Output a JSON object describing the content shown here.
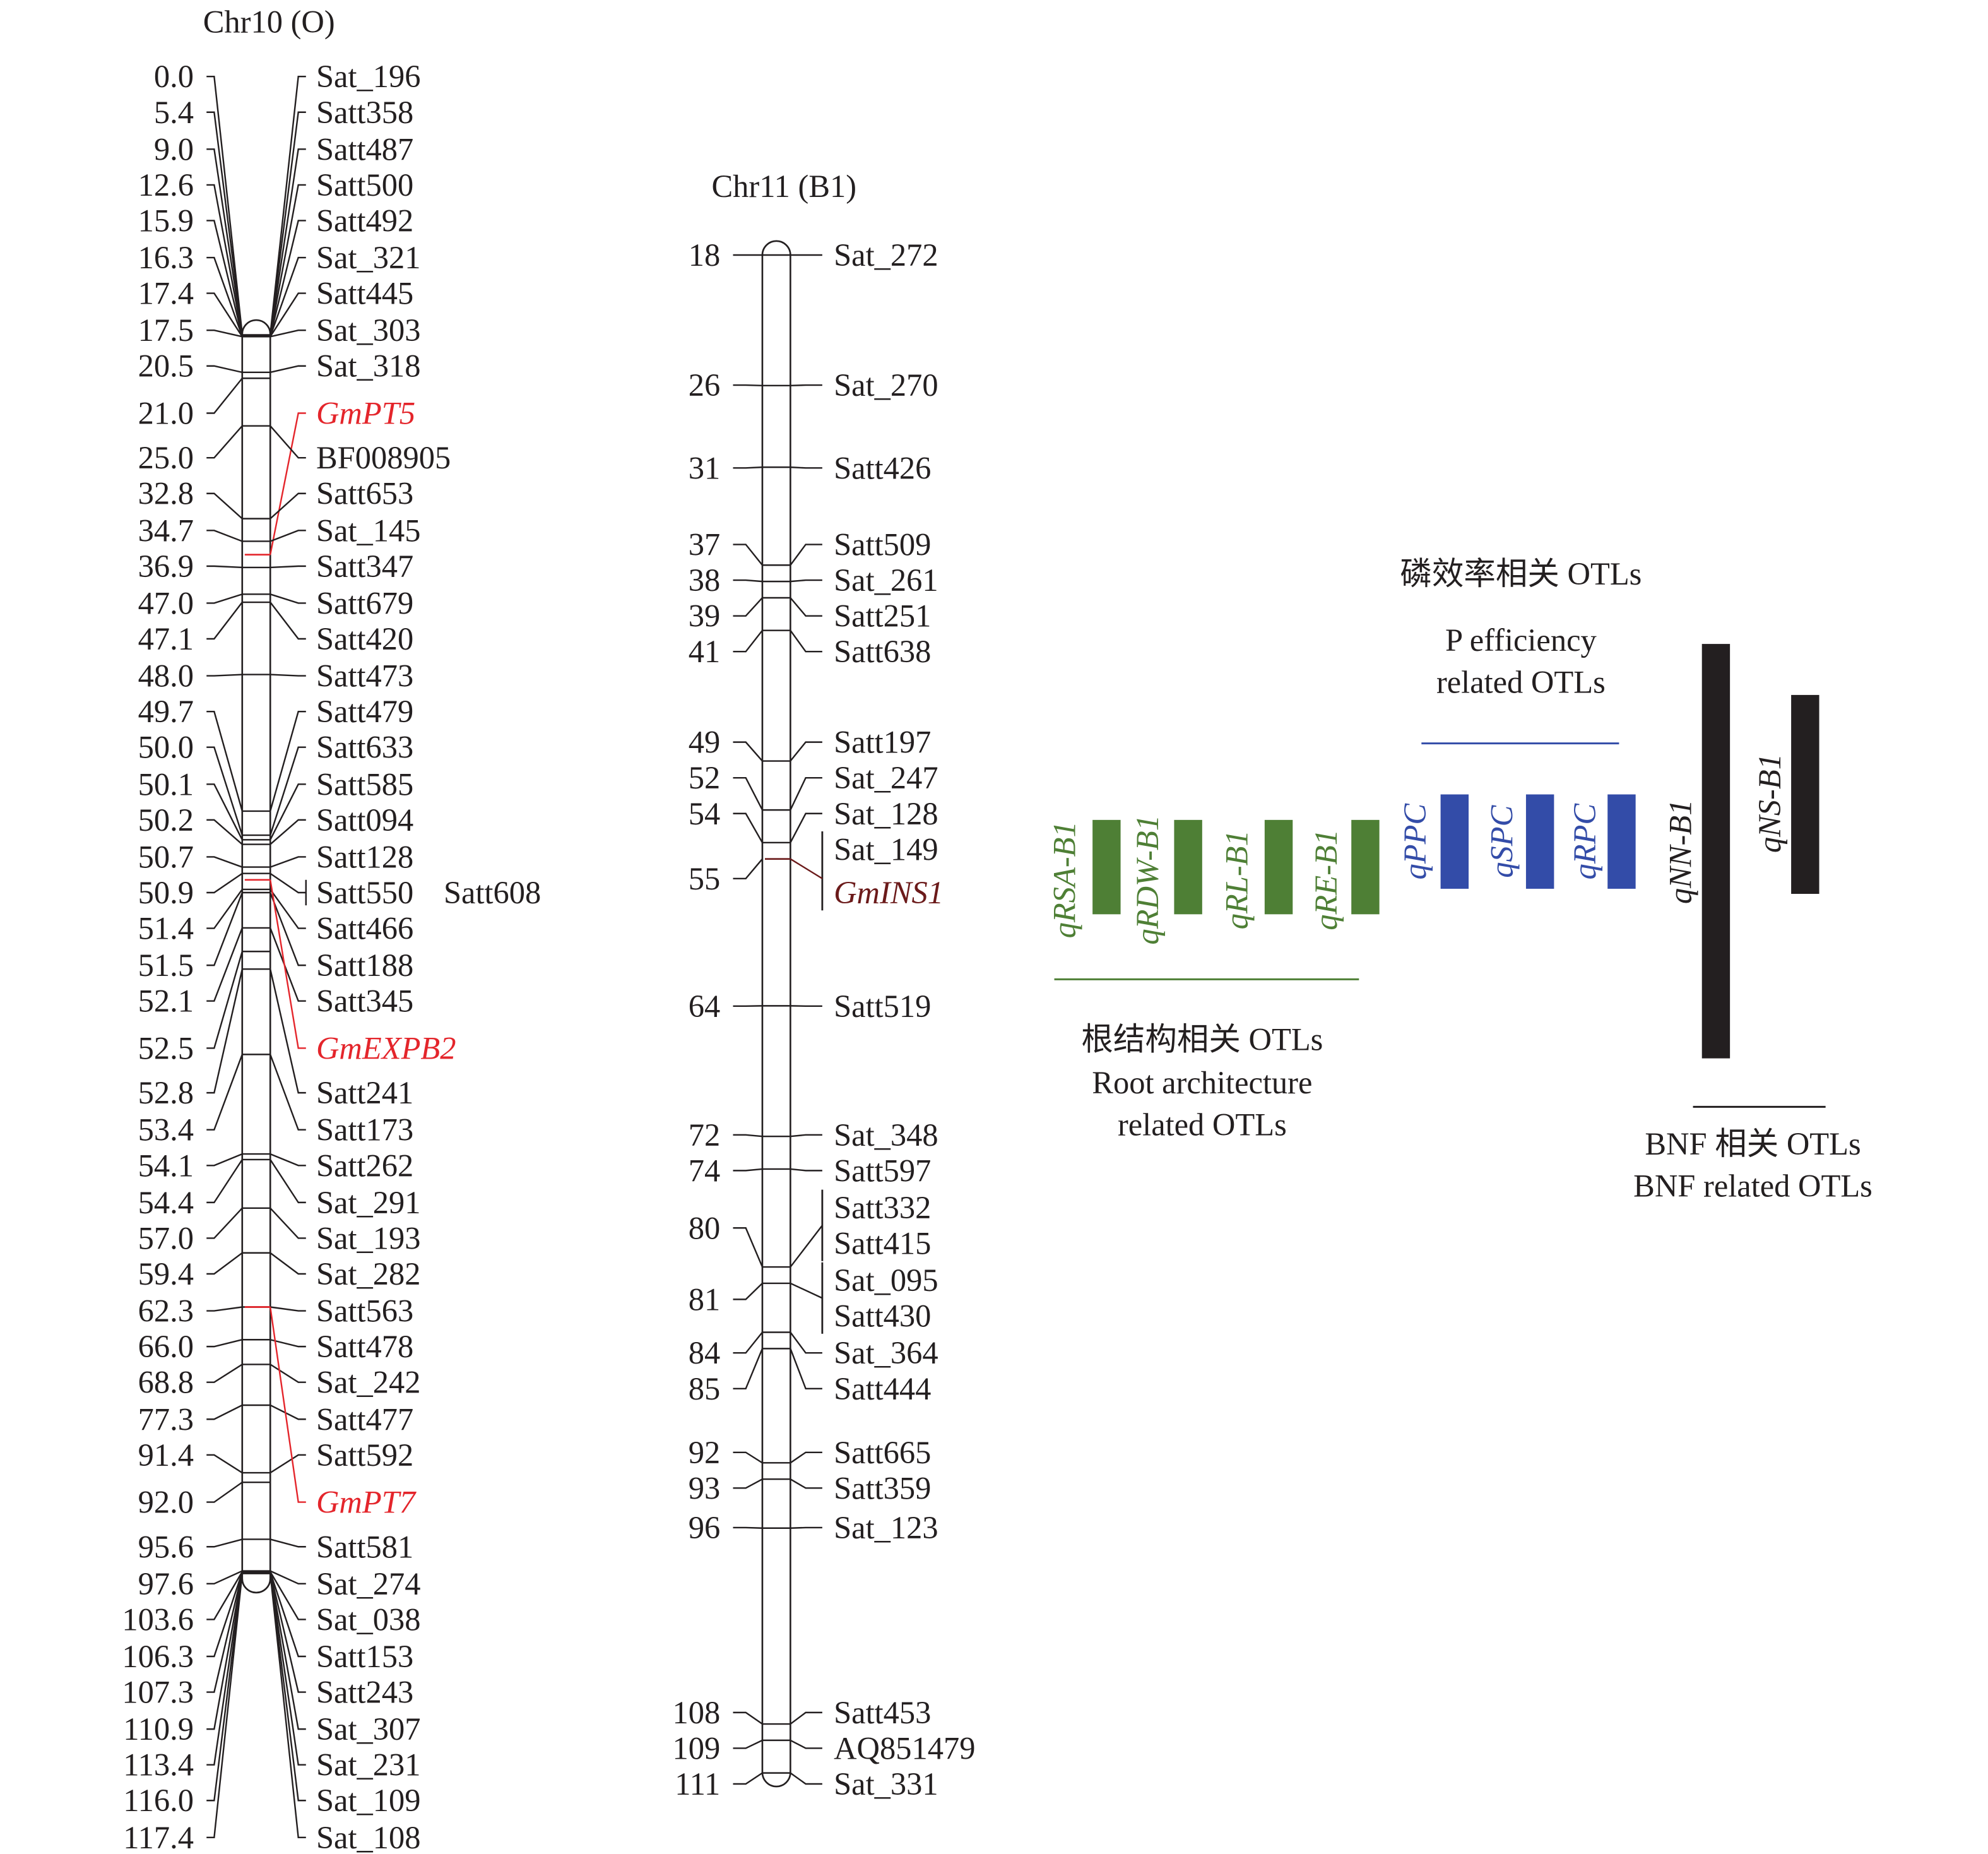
{
  "chr10": {
    "title": "Chr10 (O)",
    "markers": [
      {
        "pos": "0.0",
        "name": "Sat_196"
      },
      {
        "pos": "5.4",
        "name": "Satt358"
      },
      {
        "pos": "9.0",
        "name": "Satt487"
      },
      {
        "pos": "12.6",
        "name": "Satt500"
      },
      {
        "pos": "15.9",
        "name": "Satt492"
      },
      {
        "pos": "16.3",
        "name": "Sat_321"
      },
      {
        "pos": "17.4",
        "name": "Satt445"
      },
      {
        "pos": "17.5",
        "name": "Sat_303"
      },
      {
        "pos": "20.5",
        "name": "Sat_318"
      },
      {
        "pos": "21.0",
        "name": "GmPT5",
        "gene": true
      },
      {
        "pos": "25.0",
        "name": "BF008905"
      },
      {
        "pos": "32.8",
        "name": "Satt653"
      },
      {
        "pos": "34.7",
        "name": "Sat_145"
      },
      {
        "pos": "36.9",
        "name": "Satt347"
      },
      {
        "pos": "47.0",
        "name": "Satt679"
      },
      {
        "pos": "47.1",
        "name": "Satt420"
      },
      {
        "pos": "48.0",
        "name": "Satt473"
      },
      {
        "pos": "49.7",
        "name": "Satt479"
      },
      {
        "pos": "50.0",
        "name": "Satt633"
      },
      {
        "pos": "50.1",
        "name": "Satt585"
      },
      {
        "pos": "50.2",
        "name": "Satt094"
      },
      {
        "pos": "50.7",
        "name": "Satt128"
      },
      {
        "pos": "50.9",
        "name": "Satt550"
      },
      {
        "pos": "51.4",
        "name": "Satt466"
      },
      {
        "pos": "51.5",
        "name": "Satt188"
      },
      {
        "pos": "52.1",
        "name": "Satt345"
      },
      {
        "pos": "52.5",
        "name": "GmEXPB2",
        "gene": true
      },
      {
        "pos": "52.8",
        "name": "Satt241"
      },
      {
        "pos": "53.4",
        "name": "Satt173"
      },
      {
        "pos": "54.1",
        "name": "Satt262"
      },
      {
        "pos": "54.4",
        "name": "Sat_291"
      },
      {
        "pos": "57.0",
        "name": "Sat_193"
      },
      {
        "pos": "59.4",
        "name": "Sat_282"
      },
      {
        "pos": "62.3",
        "name": "Satt563"
      },
      {
        "pos": "66.0",
        "name": "Satt478"
      },
      {
        "pos": "68.8",
        "name": "Sat_242"
      },
      {
        "pos": "77.3",
        "name": "Satt477"
      },
      {
        "pos": "91.4",
        "name": "Satt592"
      },
      {
        "pos": "92.0",
        "name": "GmPT7",
        "gene": true
      },
      {
        "pos": "95.6",
        "name": "Satt581"
      },
      {
        "pos": "97.6",
        "name": "Sat_274"
      },
      {
        "pos": "103.6",
        "name": "Sat_038"
      },
      {
        "pos": "106.3",
        "name": "Satt153"
      },
      {
        "pos": "107.3",
        "name": "Satt243"
      },
      {
        "pos": "110.9",
        "name": "Sat_307"
      },
      {
        "pos": "113.4",
        "name": "Sat_231"
      },
      {
        "pos": "116.0",
        "name": "Sat_109"
      },
      {
        "pos": "117.4",
        "name": "Sat_108"
      }
    ],
    "cosegregating_label": "Satt608"
  },
  "chr11": {
    "title": "Chr11 (B1)",
    "markers": [
      {
        "pos": "18",
        "names": [
          "Sat_272"
        ]
      },
      {
        "pos": "26",
        "names": [
          "Sat_270"
        ]
      },
      {
        "pos": "31",
        "names": [
          "Satt426"
        ]
      },
      {
        "pos": "37",
        "names": [
          "Satt509"
        ]
      },
      {
        "pos": "38",
        "names": [
          "Sat_261"
        ]
      },
      {
        "pos": "39",
        "names": [
          "Satt251"
        ]
      },
      {
        "pos": "41",
        "names": [
          "Satt638"
        ]
      },
      {
        "pos": "49",
        "names": [
          "Satt197"
        ]
      },
      {
        "pos": "52",
        "names": [
          "Sat_247"
        ]
      },
      {
        "pos": "54",
        "names": [
          "Sat_128"
        ]
      },
      {
        "pos": "55",
        "names": [
          "Sat_149",
          "GmINS1"
        ]
      },
      {
        "pos": "64",
        "names": [
          "Satt519"
        ]
      },
      {
        "pos": "72",
        "names": [
          "Sat_348"
        ]
      },
      {
        "pos": "74",
        "names": [
          "Satt597"
        ]
      },
      {
        "pos": "80",
        "names": [
          "Satt332",
          "Satt415"
        ]
      },
      {
        "pos": "81",
        "names": [
          "Sat_095",
          "Satt430"
        ]
      },
      {
        "pos": "84",
        "names": [
          "Sat_364"
        ]
      },
      {
        "pos": "85",
        "names": [
          "Satt444"
        ]
      },
      {
        "pos": "92",
        "names": [
          "Satt665"
        ]
      },
      {
        "pos": "93",
        "names": [
          "Satt359"
        ]
      },
      {
        "pos": "96",
        "names": [
          "Sat_123"
        ]
      },
      {
        "pos": "108",
        "names": [
          "Satt453"
        ]
      },
      {
        "pos": "109",
        "names": [
          "AQ851479"
        ]
      },
      {
        "pos": "111",
        "names": [
          "Sat_331"
        ]
      }
    ],
    "gene_names": [
      "GmINS1"
    ]
  },
  "colors": {
    "chr10_gene": "#e4252b",
    "chr11_gene": "#6b1a1a",
    "root": "#4e7f35",
    "p_eff": "#334ca8",
    "bnf": "#231f20"
  },
  "qtl_groups": {
    "root": {
      "title_cn": "根结构相关 OTLs",
      "title_en_1": "Root architecture",
      "title_en_2": "related OTLs",
      "qtls": [
        "qRSA-B1",
        "qRDW-B1",
        "qRL-B1",
        "qRE-B1"
      ]
    },
    "p_eff": {
      "title_cn": "磷效率相关 OTLs",
      "title_en_1": "P efficiency",
      "title_en_2": "related OTLs",
      "qtls": [
        "qPPC",
        "qSPC",
        "qRPC"
      ]
    },
    "bnf": {
      "title_cn": "BNF 相关 OTLs",
      "title_en_1": "BNF related OTLs",
      "qtls": [
        "qNN-B1",
        "qNS-B1"
      ]
    }
  }
}
